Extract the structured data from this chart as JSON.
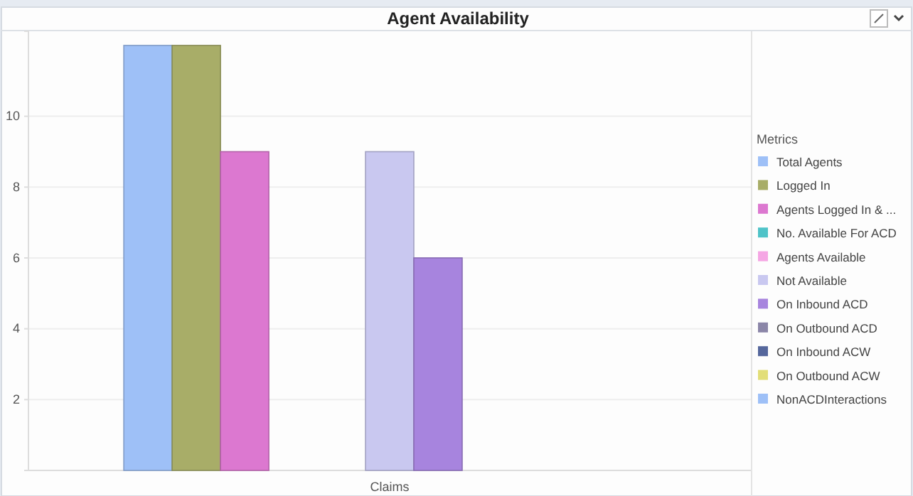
{
  "chart_data": {
    "type": "bar",
    "title": "Agent Availability",
    "legend_title": "Metrics",
    "categories": [
      "Claims"
    ],
    "series": [
      {
        "name": "Total Agents",
        "color": "#9ec0f7",
        "values": [
          12
        ]
      },
      {
        "name": "Logged In",
        "color": "#a8ad68",
        "values": [
          12
        ]
      },
      {
        "name": "Agents Logged In & ...",
        "color": "#dc78d0",
        "values": [
          9
        ]
      },
      {
        "name": "No. Available For ACD",
        "color": "#4fc3c8",
        "values": [
          0
        ]
      },
      {
        "name": "Agents Available",
        "color": "#f5a6e4",
        "values": [
          0
        ]
      },
      {
        "name": "Not Available",
        "color": "#c9c8f0",
        "values": [
          9
        ]
      },
      {
        "name": "On Inbound ACD",
        "color": "#a784de",
        "values": [
          6
        ]
      },
      {
        "name": "On Outbound ACD",
        "color": "#8b86a8",
        "values": [
          0
        ]
      },
      {
        "name": "On Inbound ACW",
        "color": "#55679c",
        "values": [
          0
        ]
      },
      {
        "name": "On Outbound ACW",
        "color": "#e2de78",
        "values": [
          0
        ]
      },
      {
        "name": "NonACDInteractions",
        "color": "#9ec0f7",
        "values": [
          0
        ]
      }
    ],
    "ylim": [
      0,
      12.4
    ],
    "yticks": [
      2,
      4,
      6,
      8,
      10
    ],
    "grid": "y",
    "legend": "right"
  }
}
